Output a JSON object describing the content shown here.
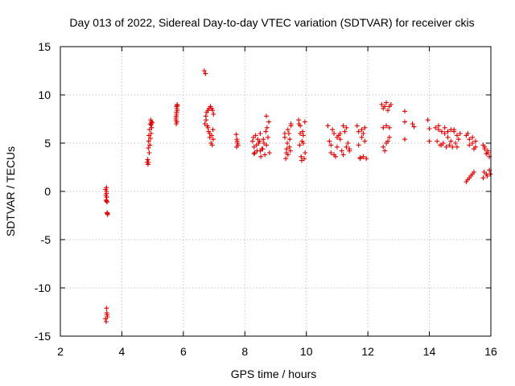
{
  "chart_data": {
    "type": "scatter",
    "title": "Day 013 of 2022, Sidereal Day-to-day VTEC variation (SDTVAR) for receiver ckis",
    "xlabel": "GPS time / hours",
    "ylabel": "SDTVAR / TECUs",
    "xlim": [
      2,
      16
    ],
    "ylim": [
      -15,
      15
    ],
    "xticks": [
      "2",
      "4",
      "6",
      "8",
      "10",
      "12",
      "14",
      "16"
    ],
    "yticks": [
      "15",
      "10",
      "5",
      "0",
      "-5",
      "-10",
      "-15"
    ],
    "grid": true,
    "marker": "plus",
    "color": "#dd0000",
    "series": [
      {
        "name": "SDTVAR",
        "x": [
          3.47,
          3.48,
          3.49,
          3.5,
          3.5,
          3.51,
          3.52,
          3.53,
          3.54,
          3.5,
          3.52,
          3.47,
          3.49,
          3.51,
          3.53,
          3.5,
          3.5,
          3.52,
          4.82,
          4.84,
          4.86,
          4.87,
          4.88,
          4.9,
          4.92,
          4.94,
          4.95,
          4.96,
          4.85,
          4.87,
          4.89,
          4.91,
          4.93,
          4.95,
          4.97,
          4.99,
          5.76,
          5.77,
          5.78,
          5.79,
          5.8,
          5.78,
          5.76,
          5.8,
          5.77,
          5.79,
          5.78,
          5.8,
          6.68,
          6.72,
          6.7,
          6.73,
          6.76,
          6.8,
          6.84,
          6.88,
          6.92,
          6.95,
          6.98,
          6.78,
          6.82,
          6.86,
          6.9,
          6.94,
          6.97,
          6.74,
          6.8,
          6.86,
          6.92,
          6.96,
          7.72,
          7.74,
          7.76,
          7.78,
          7.75,
          7.73,
          8.25,
          8.3,
          8.35,
          8.4,
          8.45,
          8.5,
          8.55,
          8.6,
          8.65,
          8.7,
          8.75,
          8.8,
          8.28,
          8.38,
          8.48,
          8.58,
          8.68,
          8.78,
          8.32,
          8.42,
          8.52,
          8.62,
          8.72,
          8.3,
          8.5,
          8.7,
          9.3,
          9.35,
          9.4,
          9.45,
          9.5,
          9.33,
          9.38,
          9.43,
          9.48,
          9.3,
          9.4,
          9.5,
          9.36,
          9.46,
          9.75,
          9.8,
          9.85,
          9.9,
          9.95,
          9.78,
          9.83,
          9.88,
          9.93,
          9.76,
          9.86,
          9.96,
          9.8,
          9.9,
          10.7,
          10.8,
          10.9,
          11.0,
          11.1,
          11.2,
          11.3,
          11.4,
          10.75,
          10.85,
          10.95,
          11.05,
          11.15,
          11.25,
          11.35,
          10.8,
          11.0,
          11.2,
          11.4,
          10.9,
          11.1,
          11.3,
          11.65,
          11.7,
          11.75,
          11.8,
          11.85,
          11.9,
          11.95,
          11.7,
          11.8,
          11.9,
          11.75,
          11.85,
          12.45,
          12.5,
          12.55,
          12.6,
          12.65,
          12.7,
          12.75,
          12.5,
          12.6,
          12.7,
          12.5,
          12.6,
          12.7,
          12.55,
          12.65,
          13.2,
          13.2,
          13.2,
          13.45,
          13.5,
          13.95,
          14.0,
          14.0,
          14.2,
          14.3,
          14.4,
          14.5,
          14.6,
          14.7,
          14.8,
          14.9,
          15.0,
          14.25,
          14.35,
          14.45,
          14.55,
          14.65,
          14.75,
          14.85,
          14.95,
          14.3,
          14.5,
          14.7,
          14.9,
          14.4,
          14.6,
          14.8,
          15.2,
          15.3,
          15.4,
          15.5,
          15.25,
          15.35,
          15.45,
          15.3,
          15.4,
          15.2,
          15.3,
          15.4,
          15.5,
          15.25,
          15.45,
          15.75,
          15.8,
          15.85,
          15.9,
          15.95,
          15.78,
          15.88,
          15.98,
          15.8,
          15.9,
          15.75,
          15.85,
          15.95
        ],
        "y": [
          0.2,
          -0.4,
          -0.9,
          -1.0,
          0.0,
          -0.6,
          -1.1,
          -2.3,
          -2.4,
          -12.1,
          -12.8,
          -13.2,
          -13.5,
          -12.6,
          -13.0,
          0.4,
          -0.2,
          -2.2,
          3.0,
          3.3,
          4.5,
          5.2,
          5.8,
          6.4,
          7.0,
          7.4,
          6.9,
          7.2,
          2.8,
          3.0,
          4.0,
          4.8,
          5.5,
          6.0,
          6.6,
          7.1,
          7.4,
          7.8,
          8.2,
          8.6,
          8.9,
          8.0,
          7.6,
          8.4,
          7.0,
          7.2,
          8.8,
          9.0,
          12.5,
          12.2,
          7.0,
          7.8,
          8.2,
          8.4,
          8.6,
          8.8,
          8.6,
          8.4,
          8.0,
          6.8,
          6.2,
          5.6,
          5.0,
          4.8,
          5.4,
          7.4,
          6.6,
          6.0,
          5.8,
          6.4,
          5.9,
          5.4,
          5.0,
          4.8,
          5.2,
          4.6,
          5.2,
          4.6,
          5.8,
          4.2,
          5.0,
          6.0,
          4.4,
          5.4,
          3.8,
          4.8,
          5.6,
          4.0,
          5.6,
          4.8,
          5.2,
          4.4,
          6.2,
          7.2,
          4.0,
          5.4,
          3.6,
          5.0,
          6.6,
          3.9,
          4.2,
          7.8,
          5.6,
          4.0,
          6.4,
          4.6,
          7.0,
          3.4,
          5.0,
          6.0,
          4.2,
          6.0,
          3.8,
          6.8,
          4.4,
          5.4,
          7.4,
          6.8,
          3.2,
          5.8,
          7.2,
          4.8,
          3.6,
          6.2,
          3.4,
          7.0,
          5.2,
          4.0,
          6.0,
          5.0,
          6.8,
          4.0,
          6.0,
          4.6,
          5.4,
          3.8,
          6.6,
          4.4,
          5.2,
          6.4,
          3.6,
          5.8,
          4.2,
          6.2,
          5.0,
          4.8,
          5.6,
          6.8,
          4.2,
          3.8,
          6.0,
          4.6,
          6.8,
          6.2,
          3.4,
          5.6,
          3.6,
          6.6,
          3.4,
          4.8,
          6.4,
          5.2,
          3.5,
          6.0,
          9.0,
          8.6,
          8.8,
          9.2,
          8.4,
          8.8,
          9.0,
          6.6,
          6.8,
          6.6,
          4.6,
          5.0,
          5.6,
          4.2,
          5.2,
          8.3,
          7.2,
          5.4,
          7.0,
          6.7,
          7.4,
          6.5,
          5.2,
          6.6,
          6.4,
          6.2,
          6.0,
          6.2,
          6.4,
          6.2,
          5.8,
          6.0,
          5.2,
          4.8,
          5.0,
          4.6,
          4.8,
          4.6,
          5.0,
          5.4,
          6.8,
          6.6,
          5.2,
          4.6,
          4.8,
          5.6,
          6.4,
          5.8,
          5.4,
          5.0,
          4.6,
          1.2,
          1.6,
          2.0,
          4.8,
          5.6,
          1.0,
          1.4,
          1.8,
          5.2,
          6.0,
          4.4,
          4.8,
          4.4,
          3.9,
          4.2,
          3.6,
          2.0,
          1.6,
          1.8,
          4.6,
          4.0,
          1.4,
          1.8,
          2.2
        ]
      }
    ]
  }
}
